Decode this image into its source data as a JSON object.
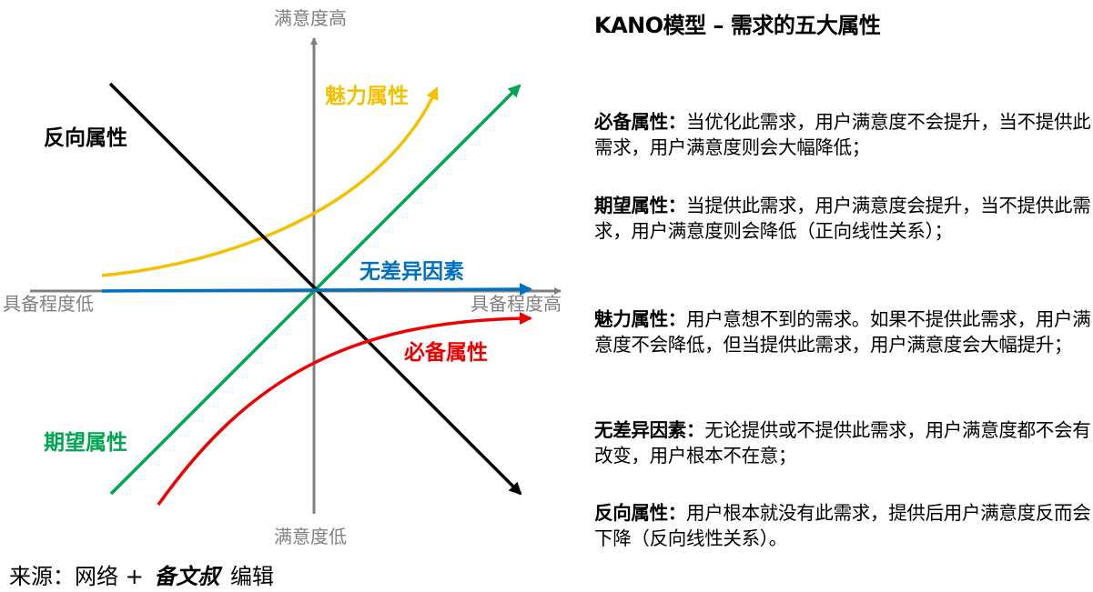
{
  "diagram": {
    "axes": {
      "y_top": "满意度高",
      "y_bottom": "满意度低",
      "x_left": "具备程度低",
      "x_right": "具备程度高"
    },
    "curves": {
      "charm": {
        "label": "魅力属性",
        "color": "#f5c000"
      },
      "reverse": {
        "label": "反向属性",
        "color": "#000000"
      },
      "indifferent": {
        "label": "无差异因素",
        "color": "#0070c0"
      },
      "must_be": {
        "label": "必备属性",
        "color": "#ee0000"
      },
      "performance": {
        "label": "期望属性",
        "color": "#00a651"
      }
    },
    "axis_color": "#7f7f7f"
  },
  "panel": {
    "title": "KANO模型 – 需求的五大属性",
    "items": [
      {
        "name": "必备属性：",
        "text": "当优化此需求，用户满意度不会提升，当不提供此需求，用户满意度则会大幅降低；"
      },
      {
        "name": "期望属性：",
        "text": "当提供此需求，用户满意度会提升，当不提供此需求，用户满意度则会降低（正向线性关系）；"
      },
      {
        "name": "魅力属性：",
        "text": "用户意想不到的需求。如果不提供此需求，用户满意度不会降低，但当提供此需求，用户满意度会大幅提升；"
      },
      {
        "name": "无差异因素：",
        "text": "无论提供或不提供此需求，用户满意度都不会有改变，用户根本不在意；"
      },
      {
        "name": "反向属性：",
        "text": "用户根本就没有此需求，提供后用户满意度反而会下降（反向线性关系）。"
      }
    ]
  },
  "source": {
    "prefix": "来源：网络 +",
    "brand": "备文叔",
    "suffix": "编辑"
  }
}
